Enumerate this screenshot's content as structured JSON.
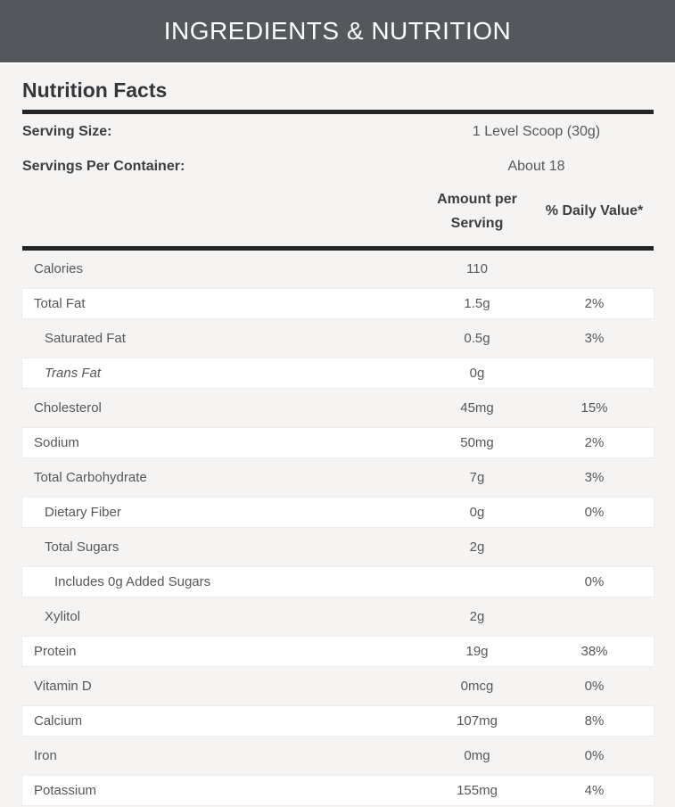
{
  "header": {
    "title": "INGREDIENTS & NUTRITION"
  },
  "panel": {
    "title": "Nutrition Facts",
    "serving_rows": [
      {
        "label": "Serving Size:",
        "value": "1 Level Scoop (30g)"
      },
      {
        "label": "Servings Per Container:",
        "value": "About 18"
      }
    ],
    "columns": {
      "amount": "Amount per Serving",
      "daily_value": "% Daily Value*"
    },
    "rows": [
      {
        "label": "Calories",
        "amount": "110",
        "dv": "",
        "indent": 0,
        "shade": "gray",
        "italic": false
      },
      {
        "label": "Total Fat",
        "amount": "1.5g",
        "dv": "2%",
        "indent": 0,
        "shade": "white",
        "italic": false
      },
      {
        "label": "Saturated Fat",
        "amount": "0.5g",
        "dv": "3%",
        "indent": 1,
        "shade": "gray",
        "italic": false
      },
      {
        "label": "Trans Fat",
        "amount": "0g",
        "dv": "",
        "indent": 1,
        "shade": "white",
        "italic": true
      },
      {
        "label": "Cholesterol",
        "amount": "45mg",
        "dv": "15%",
        "indent": 0,
        "shade": "gray",
        "italic": false
      },
      {
        "label": "Sodium",
        "amount": "50mg",
        "dv": "2%",
        "indent": 0,
        "shade": "white",
        "italic": false
      },
      {
        "label": "Total Carbohydrate",
        "amount": "7g",
        "dv": "3%",
        "indent": 0,
        "shade": "gray",
        "italic": false
      },
      {
        "label": "Dietary Fiber",
        "amount": "0g",
        "dv": "0%",
        "indent": 1,
        "shade": "white",
        "italic": false
      },
      {
        "label": "Total Sugars",
        "amount": "2g",
        "dv": "",
        "indent": 1,
        "shade": "gray",
        "italic": false
      },
      {
        "label": "Includes 0g Added Sugars",
        "amount": "",
        "dv": "0%",
        "indent": 2,
        "shade": "white",
        "italic": false
      },
      {
        "label": "Xylitol",
        "amount": "2g",
        "dv": "",
        "indent": 1,
        "shade": "gray",
        "italic": false
      },
      {
        "label": "Protein",
        "amount": "19g",
        "dv": "38%",
        "indent": 0,
        "shade": "white",
        "italic": false
      },
      {
        "label": "Vitamin D",
        "amount": "0mcg",
        "dv": "0%",
        "indent": 0,
        "shade": "gray",
        "italic": false
      },
      {
        "label": "Calcium",
        "amount": "107mg",
        "dv": "8%",
        "indent": 0,
        "shade": "white",
        "italic": false
      },
      {
        "label": "Iron",
        "amount": "0mg",
        "dv": "0%",
        "indent": 0,
        "shade": "gray",
        "italic": false
      },
      {
        "label": "Potassium",
        "amount": "155mg",
        "dv": "4%",
        "indent": 0,
        "shade": "white",
        "italic": false
      }
    ]
  },
  "colors": {
    "header_bg": "#54575b",
    "header_text": "#fdfdfd",
    "page_bg": "#f5f4f2",
    "row_white": "#ffffff",
    "thick_rule": "#232425",
    "title_text": "#33363a",
    "bold_text": "#3b3e41",
    "body_text": "#55585b"
  }
}
